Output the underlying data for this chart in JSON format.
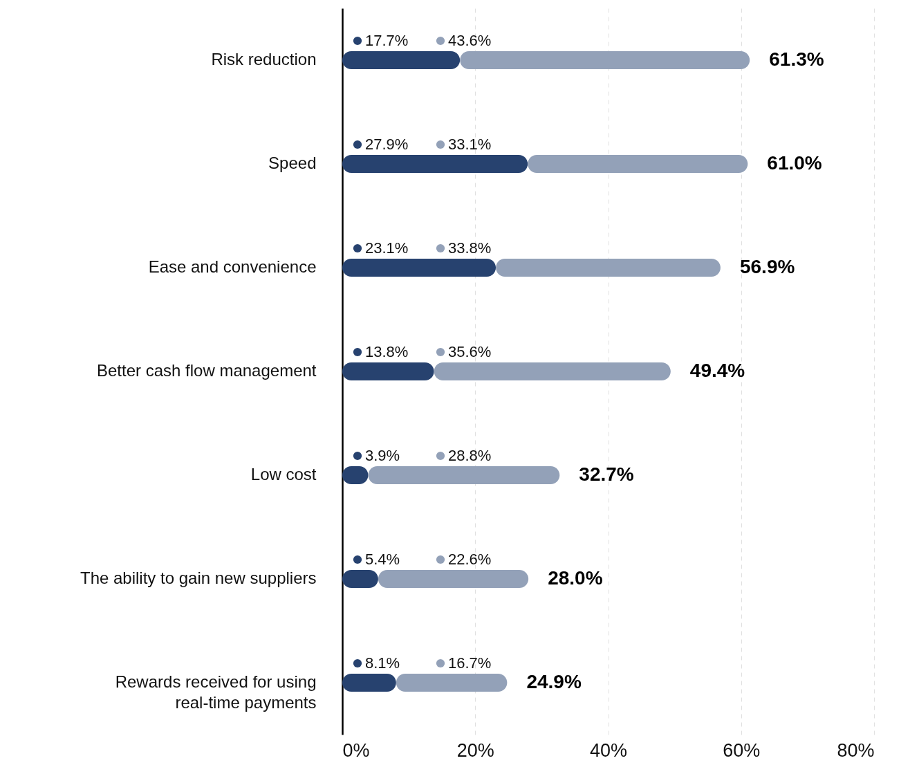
{
  "chart_data": {
    "type": "bar",
    "orientation": "horizontal",
    "stacked": true,
    "categories": [
      "Risk reduction",
      "Speed",
      "Ease and convenience",
      "Better cash flow management",
      "Low cost",
      "The ability to gain new suppliers",
      "Rewards received for using\nreal-time payments"
    ],
    "series": [
      {
        "color": "#27426f",
        "values": [
          17.7,
          27.9,
          23.1,
          13.8,
          3.9,
          5.4,
          8.1
        ],
        "value_labels": [
          "17.7%",
          "27.9%",
          "23.1%",
          "13.8%",
          "3.9%",
          "5.4%",
          "8.1%"
        ]
      },
      {
        "color": "#93a1b8",
        "values": [
          43.6,
          33.1,
          33.8,
          35.6,
          28.8,
          22.6,
          16.7
        ],
        "value_labels": [
          "43.6%",
          "33.1%",
          "33.8%",
          "35.6%",
          "28.8%",
          "22.6%",
          "16.7%"
        ]
      }
    ],
    "totals": [
      "61.3%",
      "61.0%",
      "56.9%",
      "49.4%",
      "32.7%",
      "28.0%",
      "24.9%"
    ],
    "xlim": [
      0,
      80
    ],
    "xticks": [
      {
        "value": 0,
        "label": "0%"
      },
      {
        "value": 20,
        "label": "20%"
      },
      {
        "value": 40,
        "label": "40%"
      },
      {
        "value": 60,
        "label": "60%"
      },
      {
        "value": 80,
        "label": "80%"
      }
    ],
    "grid": "x"
  }
}
